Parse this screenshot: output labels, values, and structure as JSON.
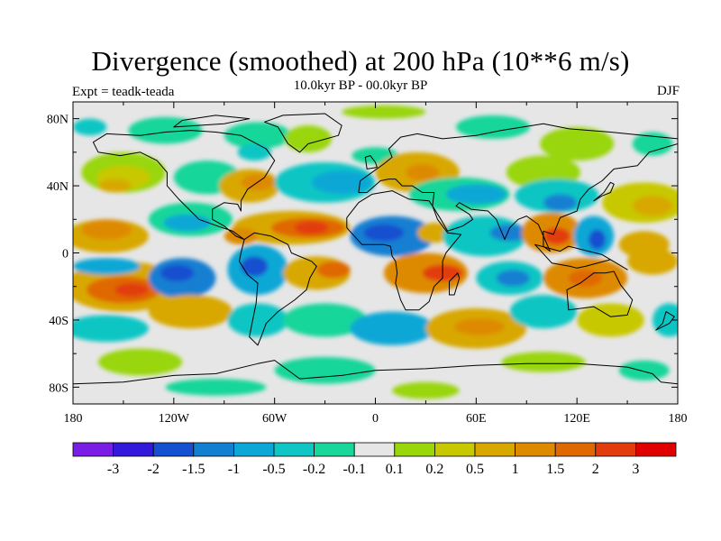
{
  "header": {
    "title": "Divergence (smoothed) at 200 hPa (10**6 m/s)",
    "experiment": "Expt = teadk-teada",
    "period": "10.0kyr BP - 00.0kyr BP",
    "season": "DJF"
  },
  "map": {
    "projection": "cylindrical-equidistant",
    "lon_range": [
      -180,
      180
    ],
    "lat_range": [
      -90,
      90
    ],
    "x_ticks": [
      {
        "value": -180,
        "label": "180"
      },
      {
        "value": -120,
        "label": "120W"
      },
      {
        "value": -60,
        "label": "60W"
      },
      {
        "value": 0,
        "label": "0"
      },
      {
        "value": 60,
        "label": "60E"
      },
      {
        "value": 120,
        "label": "120E"
      },
      {
        "value": 180,
        "label": "180"
      }
    ],
    "y_ticks": [
      {
        "value": 80,
        "label": "80N"
      },
      {
        "value": 40,
        "label": "40N"
      },
      {
        "value": 0,
        "label": "0"
      },
      {
        "value": -40,
        "label": "40S"
      },
      {
        "value": -80,
        "label": "80S"
      }
    ]
  },
  "colorbar": {
    "colors": [
      "#7a1ee6",
      "#3319d9",
      "#1450cf",
      "#127fd1",
      "#0ba7d6",
      "#10c6c4",
      "#19d69a",
      "#e6e6e6",
      "#99d60a",
      "#c8c800",
      "#d8a800",
      "#de8a00",
      "#e06800",
      "#e23c0c",
      "#e00000"
    ],
    "labels": [
      "-3",
      "-2",
      "-1.5",
      "-1",
      "-0.5",
      "-0.2",
      "-0.1",
      "0.1",
      "0.2",
      "0.5",
      "1",
      "1.5",
      "2",
      "3"
    ]
  },
  "field_patches": [
    {
      "lon": -170,
      "lat": 75,
      "rx": 10,
      "ry": 5,
      "c": 5
    },
    {
      "lon": -125,
      "lat": 73,
      "rx": 22,
      "ry": 8,
      "c": 6
    },
    {
      "lon": -70,
      "lat": 70,
      "rx": 20,
      "ry": 8,
      "c": 6
    },
    {
      "lon": -72,
      "lat": 60,
      "rx": 10,
      "ry": 5,
      "c": 5
    },
    {
      "lon": -40,
      "lat": 68,
      "rx": 14,
      "ry": 8,
      "c": 8
    },
    {
      "lon": 0,
      "lat": 58,
      "rx": 14,
      "ry": 5,
      "c": 6
    },
    {
      "lon": 5,
      "lat": 84,
      "rx": 25,
      "ry": 4,
      "c": 8
    },
    {
      "lon": 70,
      "lat": 75,
      "rx": 22,
      "ry": 7,
      "c": 6
    },
    {
      "lon": 120,
      "lat": 65,
      "rx": 22,
      "ry": 10,
      "c": 8
    },
    {
      "lon": 100,
      "lat": 48,
      "rx": 22,
      "ry": 10,
      "c": 8
    },
    {
      "lon": 165,
      "lat": 65,
      "rx": 12,
      "ry": 7,
      "c": 6
    },
    {
      "lon": -150,
      "lat": 48,
      "rx": 25,
      "ry": 12,
      "c": 8
    },
    {
      "lon": -150,
      "lat": 45,
      "rx": 16,
      "ry": 7,
      "c": 9
    },
    {
      "lon": -155,
      "lat": 40,
      "rx": 10,
      "ry": 4,
      "c": 10
    },
    {
      "lon": -100,
      "lat": 45,
      "rx": 20,
      "ry": 10,
      "c": 6
    },
    {
      "lon": -75,
      "lat": 40,
      "rx": 18,
      "ry": 10,
      "c": 10
    },
    {
      "lon": -70,
      "lat": 42,
      "rx": 10,
      "ry": 5,
      "c": 11
    },
    {
      "lon": -30,
      "lat": 42,
      "rx": 30,
      "ry": 12,
      "c": 5
    },
    {
      "lon": -20,
      "lat": 42,
      "rx": 18,
      "ry": 7,
      "c": 4
    },
    {
      "lon": 25,
      "lat": 48,
      "rx": 25,
      "ry": 12,
      "c": 10
    },
    {
      "lon": 28,
      "lat": 48,
      "rx": 10,
      "ry": 5,
      "c": 11
    },
    {
      "lon": 50,
      "lat": 35,
      "rx": 30,
      "ry": 10,
      "c": 6
    },
    {
      "lon": 60,
      "lat": 35,
      "rx": 18,
      "ry": 6,
      "c": 4
    },
    {
      "lon": 108,
      "lat": 34,
      "rx": 25,
      "ry": 10,
      "c": 5
    },
    {
      "lon": 110,
      "lat": 30,
      "rx": 10,
      "ry": 5,
      "c": 3
    },
    {
      "lon": 160,
      "lat": 30,
      "rx": 25,
      "ry": 12,
      "c": 9
    },
    {
      "lon": 165,
      "lat": 28,
      "rx": 12,
      "ry": 6,
      "c": 10
    },
    {
      "lon": -160,
      "lat": 10,
      "rx": 25,
      "ry": 10,
      "c": 10
    },
    {
      "lon": -160,
      "lat": 14,
      "rx": 15,
      "ry": 6,
      "c": 11
    },
    {
      "lon": -110,
      "lat": 20,
      "rx": 25,
      "ry": 10,
      "c": 6
    },
    {
      "lon": -112,
      "lat": 18,
      "rx": 14,
      "ry": 5,
      "c": 4
    },
    {
      "lon": -50,
      "lat": 15,
      "rx": 35,
      "ry": 10,
      "c": 10
    },
    {
      "lon": -40,
      "lat": 15,
      "rx": 22,
      "ry": 6,
      "c": 12
    },
    {
      "lon": -38,
      "lat": 15,
      "rx": 10,
      "ry": 4,
      "c": 13
    },
    {
      "lon": -80,
      "lat": 10,
      "rx": 10,
      "ry": 5,
      "c": 11
    },
    {
      "lon": 10,
      "lat": 10,
      "rx": 25,
      "ry": 12,
      "c": 3
    },
    {
      "lon": 5,
      "lat": 12,
      "rx": 12,
      "ry": 5,
      "c": 2
    },
    {
      "lon": 35,
      "lat": 12,
      "rx": 10,
      "ry": 6,
      "c": 10
    },
    {
      "lon": 65,
      "lat": 10,
      "rx": 25,
      "ry": 12,
      "c": 5
    },
    {
      "lon": 80,
      "lat": 12,
      "rx": 12,
      "ry": 5,
      "c": 3
    },
    {
      "lon": 105,
      "lat": 12,
      "rx": 18,
      "ry": 12,
      "c": 11
    },
    {
      "lon": 108,
      "lat": 10,
      "rx": 8,
      "ry": 5,
      "c": 13
    },
    {
      "lon": 130,
      "lat": 10,
      "rx": 12,
      "ry": 12,
      "c": 4
    },
    {
      "lon": 132,
      "lat": 8,
      "rx": 5,
      "ry": 6,
      "c": 2
    },
    {
      "lon": 160,
      "lat": 5,
      "rx": 15,
      "ry": 8,
      "c": 10
    },
    {
      "lon": -150,
      "lat": -20,
      "rx": 35,
      "ry": 15,
      "c": 10
    },
    {
      "lon": -150,
      "lat": -22,
      "rx": 22,
      "ry": 8,
      "c": 12
    },
    {
      "lon": -145,
      "lat": -22,
      "rx": 10,
      "ry": 4,
      "c": 13
    },
    {
      "lon": -160,
      "lat": -8,
      "rx": 20,
      "ry": 5,
      "c": 4
    },
    {
      "lon": -115,
      "lat": -15,
      "rx": 20,
      "ry": 12,
      "c": 3
    },
    {
      "lon": -118,
      "lat": -12,
      "rx": 10,
      "ry": 5,
      "c": 2
    },
    {
      "lon": -70,
      "lat": -10,
      "rx": 18,
      "ry": 15,
      "c": 4
    },
    {
      "lon": -72,
      "lat": -8,
      "rx": 8,
      "ry": 6,
      "c": 2
    },
    {
      "lon": -35,
      "lat": -12,
      "rx": 20,
      "ry": 10,
      "c": 10
    },
    {
      "lon": -25,
      "lat": -10,
      "rx": 10,
      "ry": 5,
      "c": 12
    },
    {
      "lon": 30,
      "lat": -12,
      "rx": 25,
      "ry": 12,
      "c": 11
    },
    {
      "lon": 40,
      "lat": -12,
      "rx": 12,
      "ry": 5,
      "c": 13
    },
    {
      "lon": 80,
      "lat": -15,
      "rx": 20,
      "ry": 10,
      "c": 5
    },
    {
      "lon": 82,
      "lat": -15,
      "rx": 10,
      "ry": 5,
      "c": 3
    },
    {
      "lon": 125,
      "lat": -15,
      "rx": 25,
      "ry": 12,
      "c": 11
    },
    {
      "lon": 125,
      "lat": -15,
      "rx": 10,
      "ry": 5,
      "c": 12
    },
    {
      "lon": 165,
      "lat": -5,
      "rx": 15,
      "ry": 8,
      "c": 10
    },
    {
      "lon": -160,
      "lat": -45,
      "rx": 25,
      "ry": 8,
      "c": 5
    },
    {
      "lon": -110,
      "lat": -35,
      "rx": 25,
      "ry": 10,
      "c": 10
    },
    {
      "lon": -70,
      "lat": -40,
      "rx": 18,
      "ry": 10,
      "c": 5
    },
    {
      "lon": -30,
      "lat": -40,
      "rx": 25,
      "ry": 10,
      "c": 6
    },
    {
      "lon": 10,
      "lat": -45,
      "rx": 25,
      "ry": 10,
      "c": 4
    },
    {
      "lon": 60,
      "lat": -45,
      "rx": 30,
      "ry": 12,
      "c": 10
    },
    {
      "lon": 62,
      "lat": -44,
      "rx": 15,
      "ry": 5,
      "c": 11
    },
    {
      "lon": 100,
      "lat": -35,
      "rx": 20,
      "ry": 10,
      "c": 5
    },
    {
      "lon": 140,
      "lat": -40,
      "rx": 20,
      "ry": 10,
      "c": 9
    },
    {
      "lon": 175,
      "lat": -40,
      "rx": 10,
      "ry": 10,
      "c": 5
    },
    {
      "lon": -140,
      "lat": -65,
      "rx": 25,
      "ry": 8,
      "c": 8
    },
    {
      "lon": -30,
      "lat": -70,
      "rx": 30,
      "ry": 8,
      "c": 6
    },
    {
      "lon": 30,
      "lat": -82,
      "rx": 20,
      "ry": 5,
      "c": 8
    },
    {
      "lon": 100,
      "lat": -65,
      "rx": 25,
      "ry": 6,
      "c": 8
    },
    {
      "lon": 160,
      "lat": -70,
      "rx": 15,
      "ry": 6,
      "c": 6
    },
    {
      "lon": -95,
      "lat": -80,
      "rx": 30,
      "ry": 5,
      "c": 6
    }
  ],
  "continents": [
    {
      "name": "north-america",
      "coords": [
        [
          -168,
          66
        ],
        [
          -160,
          71
        ],
        [
          -140,
          70
        ],
        [
          -125,
          72
        ],
        [
          -110,
          73
        ],
        [
          -95,
          72
        ],
        [
          -80,
          70
        ],
        [
          -65,
          62
        ],
        [
          -60,
          55
        ],
        [
          -66,
          45
        ],
        [
          -76,
          38
        ],
        [
          -80,
          31
        ],
        [
          -80,
          25
        ],
        [
          -82,
          29
        ],
        [
          -90,
          30
        ],
        [
          -97,
          26
        ],
        [
          -97,
          20
        ],
        [
          -90,
          16
        ],
        [
          -83,
          10
        ],
        [
          -78,
          8
        ],
        [
          -85,
          13
        ],
        [
          -94,
          16
        ],
        [
          -105,
          20
        ],
        [
          -110,
          25
        ],
        [
          -117,
          32
        ],
        [
          -124,
          40
        ],
        [
          -124,
          48
        ],
        [
          -130,
          55
        ],
        [
          -140,
          60
        ],
        [
          -152,
          58
        ],
        [
          -165,
          60
        ]
      ]
    },
    {
      "name": "greenland",
      "coords": [
        [
          -55,
          82
        ],
        [
          -30,
          83
        ],
        [
          -20,
          76
        ],
        [
          -22,
          70
        ],
        [
          -40,
          65
        ],
        [
          -45,
          60
        ],
        [
          -52,
          65
        ],
        [
          -58,
          75
        ],
        [
          -66,
          78
        ]
      ]
    },
    {
      "name": "south-america",
      "coords": [
        [
          -78,
          8
        ],
        [
          -72,
          12
        ],
        [
          -62,
          10
        ],
        [
          -52,
          5
        ],
        [
          -50,
          0
        ],
        [
          -38,
          -5
        ],
        [
          -35,
          -8
        ],
        [
          -39,
          -15
        ],
        [
          -41,
          -22
        ],
        [
          -48,
          -28
        ],
        [
          -58,
          -35
        ],
        [
          -65,
          -42
        ],
        [
          -68,
          -50
        ],
        [
          -70,
          -55
        ],
        [
          -75,
          -50
        ],
        [
          -73,
          -40
        ],
        [
          -71,
          -30
        ],
        [
          -70,
          -18
        ],
        [
          -76,
          -13
        ],
        [
          -81,
          -5
        ],
        [
          -80,
          0
        ]
      ]
    },
    {
      "name": "eurasia",
      "coords": [
        [
          -10,
          36
        ],
        [
          -9,
          43
        ],
        [
          -2,
          48
        ],
        [
          5,
          53
        ],
        [
          10,
          57
        ],
        [
          8,
          62
        ],
        [
          15,
          69
        ],
        [
          25,
          71
        ],
        [
          40,
          68
        ],
        [
          60,
          70
        ],
        [
          75,
          73
        ],
        [
          100,
          77
        ],
        [
          115,
          74
        ],
        [
          140,
          72
        ],
        [
          160,
          70
        ],
        [
          180,
          68
        ],
        [
          180,
          65
        ],
        [
          163,
          60
        ],
        [
          156,
          52
        ],
        [
          142,
          50
        ],
        [
          135,
          43
        ],
        [
          127,
          38
        ],
        [
          122,
          32
        ],
        [
          120,
          25
        ],
        [
          110,
          21
        ],
        [
          106,
          11
        ],
        [
          100,
          13
        ],
        [
          100,
          4
        ],
        [
          104,
          1
        ],
        [
          97,
          17
        ],
        [
          90,
          22
        ],
        [
          85,
          20
        ],
        [
          80,
          15
        ],
        [
          77,
          8
        ],
        [
          72,
          20
        ],
        [
          67,
          25
        ],
        [
          57,
          26
        ],
        [
          50,
          30
        ],
        [
          48,
          28
        ],
        [
          56,
          23
        ],
        [
          58,
          20
        ],
        [
          52,
          16
        ],
        [
          43,
          13
        ],
        [
          39,
          20
        ],
        [
          34,
          28
        ],
        [
          35,
          36
        ],
        [
          28,
          36
        ],
        [
          22,
          40
        ],
        [
          16,
          40
        ],
        [
          12,
          44
        ],
        [
          8,
          44
        ],
        [
          3,
          43
        ],
        [
          -5,
          36
        ]
      ]
    },
    {
      "name": "africa",
      "coords": [
        [
          -17,
          21
        ],
        [
          -17,
          15
        ],
        [
          -8,
          5
        ],
        [
          5,
          5
        ],
        [
          9,
          4
        ],
        [
          10,
          -2
        ],
        [
          12,
          -5
        ],
        [
          13,
          -12
        ],
        [
          12,
          -18
        ],
        [
          15,
          -28
        ],
        [
          18,
          -34
        ],
        [
          26,
          -34
        ],
        [
          32,
          -29
        ],
        [
          35,
          -20
        ],
        [
          40,
          -15
        ],
        [
          40,
          -5
        ],
        [
          42,
          0
        ],
        [
          51,
          11
        ],
        [
          43,
          12
        ],
        [
          37,
          20
        ],
        [
          34,
          28
        ],
        [
          32,
          31
        ],
        [
          20,
          32
        ],
        [
          10,
          37
        ],
        [
          -2,
          35
        ],
        [
          -10,
          30
        ]
      ]
    },
    {
      "name": "australia",
      "coords": [
        [
          114,
          -22
        ],
        [
          122,
          -18
        ],
        [
          130,
          -12
        ],
        [
          137,
          -12
        ],
        [
          142,
          -11
        ],
        [
          146,
          -19
        ],
        [
          153,
          -28
        ],
        [
          150,
          -37
        ],
        [
          140,
          -38
        ],
        [
          135,
          -35
        ],
        [
          130,
          -32
        ],
        [
          115,
          -34
        ]
      ]
    },
    {
      "name": "antarctica",
      "coords": [
        [
          -180,
          -78
        ],
        [
          -150,
          -77
        ],
        [
          -120,
          -73
        ],
        [
          -95,
          -72
        ],
        [
          -70,
          -66
        ],
        [
          -60,
          -64
        ],
        [
          -45,
          -75
        ],
        [
          -20,
          -73
        ],
        [
          0,
          -70
        ],
        [
          30,
          -69
        ],
        [
          60,
          -67
        ],
        [
          90,
          -66
        ],
        [
          120,
          -66
        ],
        [
          150,
          -68
        ],
        [
          165,
          -72
        ],
        [
          170,
          -77
        ],
        [
          180,
          -78
        ],
        [
          180,
          -90
        ],
        [
          -180,
          -90
        ]
      ]
    },
    {
      "name": "madagascar",
      "coords": [
        [
          44,
          -25
        ],
        [
          47,
          -25
        ],
        [
          50,
          -15
        ],
        [
          49,
          -12
        ],
        [
          44,
          -17
        ]
      ]
    },
    {
      "name": "indonesia",
      "coords": [
        [
          95,
          5
        ],
        [
          105,
          -6
        ],
        [
          116,
          -8
        ],
        [
          120,
          -9
        ],
        [
          125,
          -8
        ],
        [
          140,
          -4
        ],
        [
          150,
          -10
        ],
        [
          135,
          -1
        ],
        [
          115,
          4
        ],
        [
          110,
          1
        ]
      ]
    },
    {
      "name": "japan",
      "coords": [
        [
          130,
          31
        ],
        [
          135,
          34
        ],
        [
          140,
          36
        ],
        [
          142,
          41
        ],
        [
          140,
          42
        ],
        [
          136,
          36
        ]
      ]
    },
    {
      "name": "uk",
      "coords": [
        [
          -5,
          50
        ],
        [
          1,
          51
        ],
        [
          0,
          54
        ],
        [
          -3,
          58
        ],
        [
          -6,
          57
        ]
      ]
    },
    {
      "name": "new-zealand",
      "coords": [
        [
          173,
          -35
        ],
        [
          178,
          -38
        ],
        [
          175,
          -42
        ],
        [
          167,
          -46
        ],
        [
          171,
          -42
        ]
      ]
    },
    {
      "name": "arctic-islands",
      "coords": [
        [
          -120,
          75
        ],
        [
          -90,
          77
        ],
        [
          -75,
          80
        ],
        [
          -95,
          82
        ],
        [
          -115,
          79
        ]
      ]
    }
  ]
}
